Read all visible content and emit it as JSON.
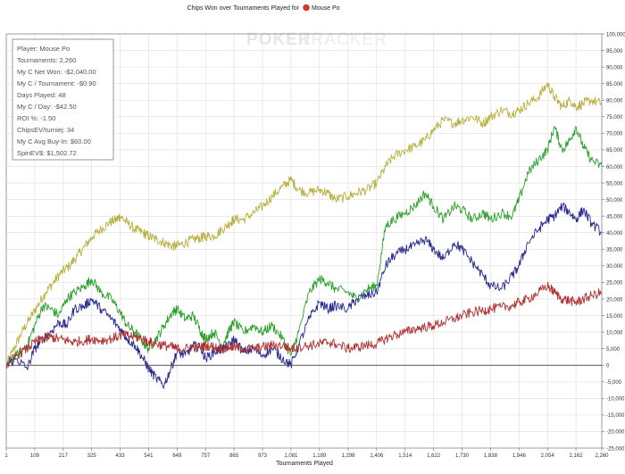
{
  "header": {
    "title_prefix": "Chips Won over Tournaments Played for",
    "player_name": "Mouse Po"
  },
  "watermark": {
    "poker": "POKER",
    "tracker": "TRACKER"
  },
  "stats_box": {
    "lines": [
      "Player: Mouse Po",
      "Tournaments: 2,260",
      "My C Net Won: -$2,040.00",
      "My C / Tournament: -$0.90",
      "Days Played: 48",
      "My C / Day: -$42.50",
      "ROI %: -1.50",
      "ChipsEV/turniej: 34",
      "My C Avg Buy-In: $60.00",
      "SpinEV$: $1,502.72"
    ]
  },
  "chart_data": {
    "type": "line",
    "title": "Chips Won over Tournaments Played for Mouse Po",
    "xlabel": "Tournaments Played",
    "ylabel": "",
    "xlim": [
      1,
      2260
    ],
    "ylim": [
      -25000,
      100000
    ],
    "x_ticks": [
      1,
      109,
      217,
      325,
      433,
      541,
      649,
      757,
      865,
      973,
      1081,
      1189,
      1298,
      1406,
      1514,
      1622,
      1730,
      1838,
      1946,
      2054,
      2162,
      2260
    ],
    "y_ticks": [
      -25000,
      -20000,
      -15000,
      -10000,
      -5000,
      0,
      5000,
      10000,
      15000,
      20000,
      25000,
      30000,
      35000,
      40000,
      45000,
      50000,
      55000,
      60000,
      65000,
      70000,
      75000,
      80000,
      85000,
      90000,
      95000,
      100000
    ],
    "y_tick_labels": [
      "-25,000",
      "-20,000",
      "-15,000",
      "-10,000",
      "-5,000",
      "0",
      "5,000",
      "10,000",
      "15,000",
      "20,000",
      "25,000",
      "30,000",
      "35,000",
      "40,000",
      "45,000",
      "50,000",
      "55,000",
      "60,000",
      "65,000",
      "70,000",
      "75,000",
      "80,000",
      "85,000",
      "90,000",
      "95,000",
      "100,000"
    ],
    "x_tick_labels": [
      "1",
      "109",
      "217",
      "325",
      "433",
      "541",
      "649",
      "757",
      "865",
      "973",
      "1,081",
      "1,189",
      "1,298",
      "1,406",
      "1,514",
      "1,622",
      "1,730",
      "1,838",
      "1,946",
      "2,054",
      "2,162",
      "2,260"
    ],
    "grid": true,
    "colors": {
      "zero_line": "#555555",
      "grid": "#dddddd",
      "axis": "#888888"
    },
    "series": [
      {
        "color": "#b8b040",
        "values": [
          [
            1,
            0
          ],
          [
            30,
            5000
          ],
          [
            60,
            10000
          ],
          [
            90,
            14000
          ],
          [
            120,
            18000
          ],
          [
            150,
            22000
          ],
          [
            180,
            25000
          ],
          [
            210,
            28000
          ],
          [
            240,
            30000
          ],
          [
            270,
            33000
          ],
          [
            300,
            36000
          ],
          [
            330,
            39000
          ],
          [
            360,
            41000
          ],
          [
            390,
            43000
          ],
          [
            420,
            44000
          ],
          [
            433,
            45000
          ],
          [
            460,
            43000
          ],
          [
            490,
            41000
          ],
          [
            520,
            40000
          ],
          [
            541,
            39000
          ],
          [
            570,
            38000
          ],
          [
            600,
            37000
          ],
          [
            630,
            36000
          ],
          [
            649,
            36000
          ],
          [
            680,
            37000
          ],
          [
            710,
            38000
          ],
          [
            740,
            38500
          ],
          [
            757,
            39000
          ],
          [
            790,
            39000
          ],
          [
            820,
            41000
          ],
          [
            850,
            43000
          ],
          [
            865,
            44000
          ],
          [
            900,
            44000
          ],
          [
            940,
            46000
          ],
          [
            973,
            48000
          ],
          [
            1010,
            51000
          ],
          [
            1050,
            54000
          ],
          [
            1081,
            56000
          ],
          [
            1110,
            53000
          ],
          [
            1150,
            52000
          ],
          [
            1189,
            53000
          ],
          [
            1220,
            52000
          ],
          [
            1250,
            50000
          ],
          [
            1298,
            51000
          ],
          [
            1330,
            52000
          ],
          [
            1370,
            53000
          ],
          [
            1406,
            55000
          ],
          [
            1440,
            60000
          ],
          [
            1470,
            63000
          ],
          [
            1514,
            65000
          ],
          [
            1550,
            66000
          ],
          [
            1590,
            68000
          ],
          [
            1622,
            71000
          ],
          [
            1660,
            74000
          ],
          [
            1700,
            73000
          ],
          [
            1730,
            74000
          ],
          [
            1770,
            75000
          ],
          [
            1810,
            73000
          ],
          [
            1838,
            75000
          ],
          [
            1880,
            77000
          ],
          [
            1920,
            76000
          ],
          [
            1946,
            77000
          ],
          [
            1980,
            79000
          ],
          [
            2020,
            81000
          ],
          [
            2054,
            85000
          ],
          [
            2080,
            81000
          ],
          [
            2110,
            78000
          ],
          [
            2140,
            80000
          ],
          [
            2162,
            78000
          ],
          [
            2190,
            79000
          ],
          [
            2220,
            80000
          ],
          [
            2260,
            79000
          ]
        ]
      },
      {
        "color": "#2aa02a",
        "values": [
          [
            1,
            0
          ],
          [
            40,
            3000
          ],
          [
            80,
            6000
          ],
          [
            109,
            12000
          ],
          [
            140,
            18000
          ],
          [
            170,
            17000
          ],
          [
            200,
            15000
          ],
          [
            230,
            20000
          ],
          [
            260,
            22000
          ],
          [
            300,
            24000
          ],
          [
            325,
            26000
          ],
          [
            360,
            22000
          ],
          [
            400,
            20000
          ],
          [
            433,
            16000
          ],
          [
            460,
            12000
          ],
          [
            490,
            10000
          ],
          [
            520,
            7000
          ],
          [
            541,
            5000
          ],
          [
            570,
            8000
          ],
          [
            600,
            12000
          ],
          [
            630,
            16000
          ],
          [
            649,
            17000
          ],
          [
            680,
            14000
          ],
          [
            710,
            15000
          ],
          [
            740,
            10000
          ],
          [
            757,
            8000
          ],
          [
            790,
            10000
          ],
          [
            820,
            6000
          ],
          [
            850,
            11000
          ],
          [
            865,
            13000
          ],
          [
            900,
            10000
          ],
          [
            940,
            12000
          ],
          [
            973,
            10000
          ],
          [
            1010,
            12000
          ],
          [
            1050,
            8000
          ],
          [
            1081,
            3000
          ],
          [
            1110,
            10000
          ],
          [
            1150,
            22000
          ],
          [
            1189,
            26000
          ],
          [
            1220,
            25000
          ],
          [
            1250,
            23000
          ],
          [
            1298,
            22000
          ],
          [
            1330,
            20000
          ],
          [
            1370,
            23000
          ],
          [
            1406,
            24000
          ],
          [
            1440,
            42000
          ],
          [
            1470,
            44000
          ],
          [
            1514,
            46000
          ],
          [
            1550,
            48000
          ],
          [
            1590,
            52000
          ],
          [
            1622,
            48000
          ],
          [
            1660,
            44000
          ],
          [
            1700,
            48000
          ],
          [
            1730,
            47000
          ],
          [
            1770,
            44000
          ],
          [
            1810,
            46000
          ],
          [
            1838,
            44000
          ],
          [
            1880,
            46000
          ],
          [
            1920,
            45000
          ],
          [
            1946,
            50000
          ],
          [
            1980,
            58000
          ],
          [
            2020,
            62000
          ],
          [
            2054,
            65000
          ],
          [
            2080,
            72000
          ],
          [
            2110,
            65000
          ],
          [
            2140,
            68000
          ],
          [
            2162,
            72000
          ],
          [
            2190,
            66000
          ],
          [
            2220,
            62000
          ],
          [
            2260,
            60000
          ]
        ]
      },
      {
        "color": "#28288f",
        "values": [
          [
            1,
            0
          ],
          [
            40,
            2000
          ],
          [
            80,
            -1000
          ],
          [
            109,
            5000
          ],
          [
            140,
            8000
          ],
          [
            170,
            10000
          ],
          [
            200,
            13000
          ],
          [
            230,
            12000
          ],
          [
            260,
            17000
          ],
          [
            300,
            18000
          ],
          [
            325,
            20000
          ],
          [
            360,
            17000
          ],
          [
            400,
            14000
          ],
          [
            433,
            11000
          ],
          [
            460,
            8000
          ],
          [
            490,
            6000
          ],
          [
            520,
            2000
          ],
          [
            541,
            -1000
          ],
          [
            570,
            -4000
          ],
          [
            600,
            -6000
          ],
          [
            630,
            0
          ],
          [
            649,
            4000
          ],
          [
            680,
            3000
          ],
          [
            710,
            6000
          ],
          [
            740,
            5000
          ],
          [
            757,
            2000
          ],
          [
            790,
            4000
          ],
          [
            820,
            5000
          ],
          [
            850,
            6000
          ],
          [
            865,
            8000
          ],
          [
            900,
            4000
          ],
          [
            940,
            5000
          ],
          [
            973,
            3000
          ],
          [
            1010,
            5000
          ],
          [
            1050,
            2000
          ],
          [
            1081,
            0
          ],
          [
            1110,
            6000
          ],
          [
            1150,
            14000
          ],
          [
            1189,
            19000
          ],
          [
            1220,
            17000
          ],
          [
            1250,
            18000
          ],
          [
            1298,
            17000
          ],
          [
            1330,
            20000
          ],
          [
            1370,
            21000
          ],
          [
            1406,
            22000
          ],
          [
            1440,
            30000
          ],
          [
            1470,
            33000
          ],
          [
            1514,
            35000
          ],
          [
            1550,
            36000
          ],
          [
            1590,
            38000
          ],
          [
            1622,
            35000
          ],
          [
            1660,
            32000
          ],
          [
            1700,
            37000
          ],
          [
            1730,
            35000
          ],
          [
            1770,
            31000
          ],
          [
            1810,
            27000
          ],
          [
            1838,
            24000
          ],
          [
            1880,
            23000
          ],
          [
            1920,
            27000
          ],
          [
            1946,
            30000
          ],
          [
            1980,
            37000
          ],
          [
            2020,
            41000
          ],
          [
            2054,
            44000
          ],
          [
            2080,
            45000
          ],
          [
            2110,
            48000
          ],
          [
            2140,
            46000
          ],
          [
            2162,
            44000
          ],
          [
            2190,
            47000
          ],
          [
            2220,
            43000
          ],
          [
            2260,
            40000
          ]
        ]
      },
      {
        "color": "#b03030",
        "values": [
          [
            1,
            0
          ],
          [
            40,
            3000
          ],
          [
            80,
            5000
          ],
          [
            109,
            7000
          ],
          [
            140,
            8000
          ],
          [
            170,
            8500
          ],
          [
            200,
            8000
          ],
          [
            230,
            7500
          ],
          [
            260,
            7000
          ],
          [
            300,
            7500
          ],
          [
            325,
            8000
          ],
          [
            360,
            7500
          ],
          [
            400,
            8000
          ],
          [
            433,
            9000
          ],
          [
            460,
            9000
          ],
          [
            490,
            8500
          ],
          [
            520,
            8000
          ],
          [
            541,
            7000
          ],
          [
            570,
            6500
          ],
          [
            600,
            6000
          ],
          [
            630,
            5500
          ],
          [
            649,
            5000
          ],
          [
            680,
            5000
          ],
          [
            710,
            5500
          ],
          [
            740,
            5500
          ],
          [
            757,
            6000
          ],
          [
            790,
            5500
          ],
          [
            820,
            5000
          ],
          [
            850,
            5500
          ],
          [
            865,
            5500
          ],
          [
            900,
            5000
          ],
          [
            940,
            5000
          ],
          [
            973,
            5500
          ],
          [
            1010,
            6000
          ],
          [
            1050,
            6000
          ],
          [
            1081,
            5000
          ],
          [
            1110,
            5500
          ],
          [
            1150,
            6000
          ],
          [
            1189,
            6500
          ],
          [
            1220,
            7000
          ],
          [
            1250,
            6500
          ],
          [
            1298,
            5000
          ],
          [
            1330,
            5500
          ],
          [
            1370,
            6000
          ],
          [
            1406,
            6500
          ],
          [
            1440,
            8000
          ],
          [
            1470,
            9000
          ],
          [
            1514,
            10000
          ],
          [
            1550,
            11000
          ],
          [
            1590,
            11500
          ],
          [
            1622,
            12000
          ],
          [
            1660,
            13000
          ],
          [
            1700,
            14000
          ],
          [
            1730,
            15000
          ],
          [
            1770,
            16000
          ],
          [
            1810,
            16500
          ],
          [
            1838,
            17000
          ],
          [
            1880,
            17500
          ],
          [
            1920,
            18000
          ],
          [
            1946,
            19000
          ],
          [
            1980,
            20000
          ],
          [
            2020,
            22000
          ],
          [
            2054,
            24000
          ],
          [
            2080,
            22000
          ],
          [
            2110,
            20000
          ],
          [
            2140,
            19500
          ],
          [
            2162,
            19000
          ],
          [
            2190,
            20000
          ],
          [
            2220,
            21000
          ],
          [
            2260,
            22000
          ]
        ]
      }
    ]
  }
}
